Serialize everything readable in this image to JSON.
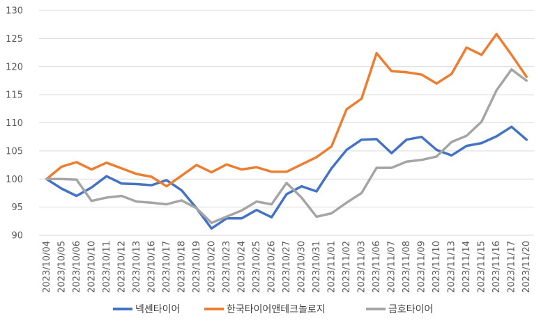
{
  "chart_data": {
    "type": "line",
    "title": "",
    "xlabel": "",
    "ylabel": "",
    "ylim": [
      90,
      130
    ],
    "yticks": [
      90,
      95,
      100,
      105,
      110,
      115,
      120,
      125,
      130
    ],
    "grid": "horizontal",
    "legend": "bottom",
    "x": [
      "2023/10/04",
      "2023/10/05",
      "2023/10/06",
      "2023/10/10",
      "2023/10/11",
      "2023/10/12",
      "2023/10/13",
      "2023/10/16",
      "2023/10/17",
      "2023/10/18",
      "2023/10/19",
      "2023/10/20",
      "2023/10/23",
      "2023/10/24",
      "2023/10/25",
      "2023/10/26",
      "2023/10/27",
      "2023/10/30",
      "2023/10/31",
      "2023/11/01",
      "2023/11/02",
      "2023/11/03",
      "2023/11/06",
      "2023/11/07",
      "2023/11/08",
      "2023/11/09",
      "2023/11/10",
      "2023/11/13",
      "2023/11/14",
      "2023/11/15",
      "2023/11/16",
      "2023/11/17",
      "2023/11/20"
    ],
    "series": [
      {
        "name": "넥센타이어",
        "color": "#4472C4",
        "values": [
          100,
          98.3,
          97.0,
          98.5,
          100.5,
          99.2,
          99.1,
          98.9,
          99.8,
          98.0,
          94.8,
          91.2,
          93.0,
          93.0,
          94.5,
          93.2,
          97.3,
          98.7,
          97.8,
          101.9,
          105.2,
          107.0,
          107.1,
          104.6,
          107.0,
          107.5,
          105.2,
          104.2,
          105.9,
          106.4,
          107.6,
          109.3,
          107.0
        ]
      },
      {
        "name": "한국타이어앤테크놀로지",
        "color": "#ED7D31",
        "values": [
          100,
          102.2,
          103.0,
          101.7,
          102.9,
          101.9,
          100.9,
          100.4,
          98.7,
          100.6,
          102.5,
          101.2,
          102.6,
          101.7,
          102.1,
          101.3,
          101.3,
          102.6,
          103.9,
          105.8,
          112.4,
          114.3,
          122.4,
          119.2,
          119.0,
          118.6,
          117.0,
          118.7,
          123.4,
          122.1,
          125.8,
          122.1,
          118.2
        ]
      },
      {
        "name": "금호타이어",
        "color": "#A5A5A5",
        "values": [
          100,
          100.0,
          99.9,
          96.1,
          96.7,
          97.0,
          96.0,
          95.8,
          95.5,
          96.2,
          94.8,
          92.2,
          93.3,
          94.4,
          96.0,
          95.5,
          99.3,
          96.7,
          93.3,
          93.9,
          95.8,
          97.5,
          102.0,
          102.0,
          103.1,
          103.4,
          104.0,
          106.6,
          107.7,
          110.2,
          115.8,
          119.5,
          117.5
        ]
      }
    ]
  }
}
